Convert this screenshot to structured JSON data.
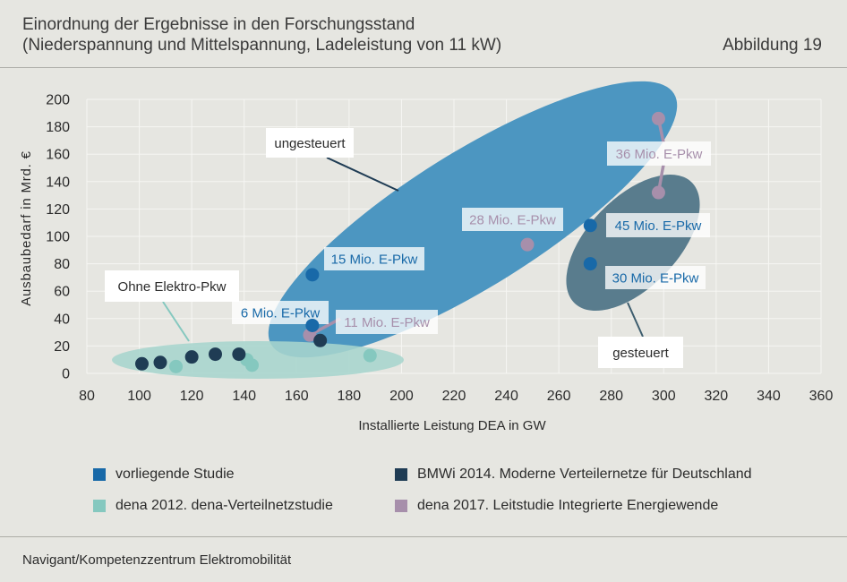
{
  "header": {
    "title_line1": "Einordnung der Ergebnisse in den Forschungsstand",
    "title_line2": "(Niederspannung und Mittelspannung, Ladeleistung von 11 kW)",
    "figure_label": "Abbildung 19"
  },
  "footer": {
    "source": "Navigant/Kompetenzzentrum Elektromobilität"
  },
  "colors": {
    "background": "#e6e6e1",
    "grid": "#f6f6f3",
    "text": "#2b2b2b",
    "label_box": "#ffffff",
    "divider": "#adada7"
  },
  "chart_data": {
    "type": "scatter",
    "xlabel": "Installierte Leistung DEA in GW",
    "ylabel": "Ausbaubedarf in Mrd. €",
    "xlim": [
      80,
      360
    ],
    "ylim": [
      0,
      200
    ],
    "xticks": [
      80,
      100,
      120,
      140,
      160,
      180,
      200,
      220,
      240,
      260,
      280,
      300,
      320,
      340,
      360
    ],
    "yticks": [
      0,
      20,
      40,
      60,
      80,
      100,
      120,
      140,
      160,
      180,
      200
    ],
    "grid": true,
    "legend_position": "bottom",
    "series": [
      {
        "name": "vorliegende Studie",
        "color": "#1869a8",
        "points": [
          {
            "x": 166,
            "y": 72
          },
          {
            "x": 166,
            "y": 35
          },
          {
            "x": 272,
            "y": 108
          },
          {
            "x": 272,
            "y": 80
          }
        ]
      },
      {
        "name": "BMWi 2014. Moderne Verteilernetze für Deutschland",
        "color": "#1f3c54",
        "points": [
          {
            "x": 101,
            "y": 7
          },
          {
            "x": 108,
            "y": 8
          },
          {
            "x": 120,
            "y": 12
          },
          {
            "x": 129,
            "y": 14
          },
          {
            "x": 138,
            "y": 14
          },
          {
            "x": 169,
            "y": 24
          }
        ]
      },
      {
        "name": "dena 2012. dena-Verteilnetzstudie",
        "color": "#85c8bf",
        "points": [
          {
            "x": 114,
            "y": 5
          },
          {
            "x": 141,
            "y": 10
          },
          {
            "x": 143,
            "y": 6
          },
          {
            "x": 188,
            "y": 13
          }
        ]
      },
      {
        "name": "dena 2017. Leitstudie Integrierte Energiewende",
        "color": "#a78fab",
        "points": [
          {
            "x": 165,
            "y": 28
          },
          {
            "x": 248,
            "y": 94
          },
          {
            "x": 298,
            "y": 186
          },
          {
            "x": 298,
            "y": 132
          }
        ]
      }
    ],
    "annotations": [
      {
        "text": "15 Mio. E-Pkw",
        "series": 0,
        "points": [
          0
        ]
      },
      {
        "text": "6 Mio. E-Pkw",
        "series": 0,
        "points": [
          1
        ]
      },
      {
        "text": "45 Mio. E-Pkw",
        "series": 0,
        "points": [
          2
        ]
      },
      {
        "text": "30 Mio. E-Pkw",
        "series": 0,
        "points": [
          3
        ]
      },
      {
        "text": "11 Mio. E-Pkw",
        "series": 3,
        "points": [
          0
        ]
      },
      {
        "text": "28 Mio. E-Pkw",
        "series": 3,
        "points": [
          1
        ]
      },
      {
        "text": "36 Mio. E-Pkw",
        "series": 3,
        "points": [
          2,
          3
        ]
      }
    ],
    "regions": [
      {
        "label": "ungesteuert",
        "color": "#4c96c1",
        "leader_color": "#1f3c54"
      },
      {
        "label": "gesteuert",
        "color": "#597c8d",
        "leader_color": "#3d5d6e"
      },
      {
        "label": "Ohne Elektro-Pkw",
        "color": "#a7d5cd",
        "leader_color": "#85c8bf"
      }
    ]
  }
}
